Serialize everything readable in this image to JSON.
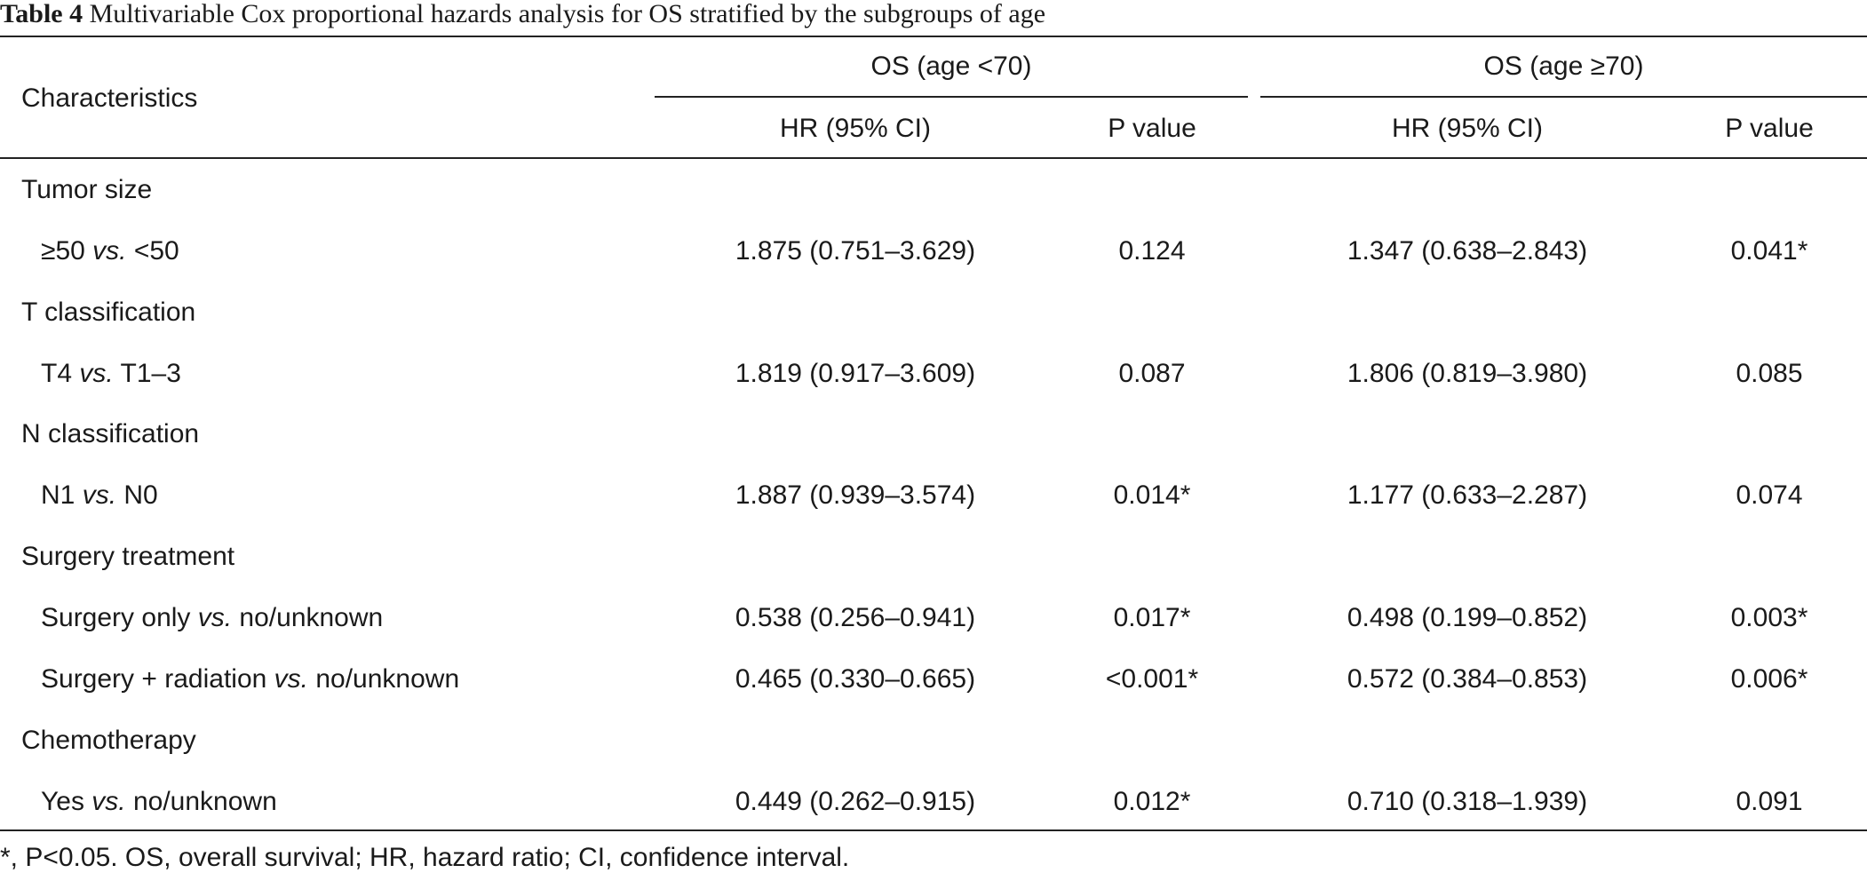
{
  "caption": {
    "label": "Table 4",
    "text": " Multivariable Cox proportional hazards analysis for OS stratified by the subgroups of age"
  },
  "header": {
    "characteristics": "Characteristics",
    "group1": "OS (age <70)",
    "group2": "OS (age ≥70)",
    "hr": "HR (95% CI)",
    "p": "P value"
  },
  "rows": [
    {
      "type": "section",
      "label": "Tumor size"
    },
    {
      "type": "item",
      "pre": "≥50 ",
      "vs": "vs.",
      "post": " <50",
      "hr1": "1.875 (0.751–3.629)",
      "p1": "0.124",
      "hr2": "1.347 (0.638–2.843)",
      "p2": "0.041*"
    },
    {
      "type": "section",
      "label": "T classification"
    },
    {
      "type": "item",
      "pre": "T4 ",
      "vs": "vs.",
      "post": " T1–3",
      "hr1": "1.819 (0.917–3.609)",
      "p1": "0.087",
      "hr2": "1.806 (0.819–3.980)",
      "p2": "0.085"
    },
    {
      "type": "section",
      "label": "N classification"
    },
    {
      "type": "item",
      "pre": "N1 ",
      "vs": "vs.",
      "post": " N0",
      "hr1": "1.887 (0.939–3.574)",
      "p1": "0.014*",
      "hr2": "1.177 (0.633–2.287)",
      "p2": "0.074"
    },
    {
      "type": "section",
      "label": "Surgery treatment"
    },
    {
      "type": "item",
      "pre": "Surgery only ",
      "vs": "vs.",
      "post": " no/unknown",
      "hr1": "0.538 (0.256–0.941)",
      "p1": "0.017*",
      "hr2": "0.498 (0.199–0.852)",
      "p2": "0.003*"
    },
    {
      "type": "item",
      "pre": "Surgery + radiation ",
      "vs": "vs.",
      "post": " no/unknown",
      "hr1": "0.465 (0.330–0.665)",
      "p1": "<0.001*",
      "hr2": "0.572 (0.384–0.853)",
      "p2": "0.006*"
    },
    {
      "type": "section",
      "label": "Chemotherapy"
    },
    {
      "type": "item",
      "pre": "Yes ",
      "vs": "vs.",
      "post": " no/unknown",
      "hr1": "0.449 (0.262–0.915)",
      "p1": "0.012*",
      "hr2": "0.710 (0.318–1.939)",
      "p2": "0.091"
    }
  ],
  "footnote": "*, P<0.05. OS, overall survival; HR, hazard ratio; CI, confidence interval."
}
